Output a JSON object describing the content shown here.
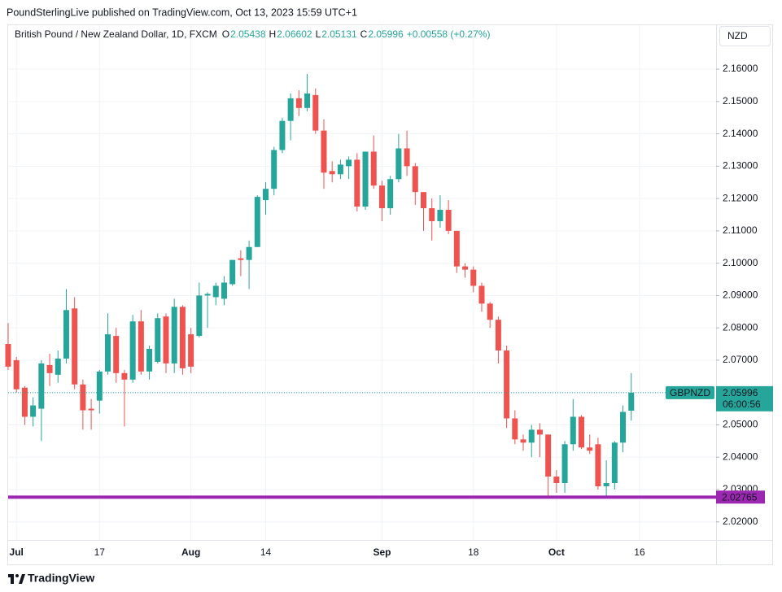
{
  "header": {
    "published": "PoundSterlingLive published on TradingView.com, Oct 13, 2023 15:59 UTC+1",
    "logo": "TradingView"
  },
  "chart_data": {
    "type": "candlestick",
    "title": "British Pound / New Zealand Dollar, 1D, FXCM",
    "ohlc_letters": [
      "O",
      "H",
      "L",
      "C"
    ],
    "change": "+0.00558 (+0.27%)",
    "currency": "NZD",
    "ticker": "GBPNZD",
    "countdown": "06:00:56",
    "up_color": "#26a69a",
    "down_color": "#ef5350",
    "hline": {
      "value": 2.02765,
      "label": "2.02765",
      "color": "#9c27b0"
    },
    "categories": [
      null,
      "Jul",
      null,
      null,
      null,
      null,
      null,
      null,
      null,
      null,
      null,
      "17",
      null,
      null,
      null,
      null,
      null,
      null,
      null,
      null,
      null,
      null,
      "Aug",
      null,
      null,
      null,
      null,
      null,
      null,
      null,
      null,
      "14",
      null,
      null,
      null,
      null,
      null,
      null,
      null,
      null,
      null,
      null,
      null,
      null,
      null,
      "Sep",
      null,
      null,
      null,
      null,
      null,
      null,
      null,
      null,
      null,
      null,
      "18",
      null,
      null,
      null,
      null,
      null,
      null,
      null,
      null,
      null,
      "Oct",
      null,
      null,
      null,
      null,
      null,
      null,
      null,
      null,
      null,
      "16"
    ],
    "open": [
      2.075,
      2.07,
      2.0615,
      2.0525,
      2.055,
      2.0685,
      2.0655,
      2.0705,
      2.086,
      2.0625,
      2.055,
      2.0575,
      2.0665,
      2.0775,
      2.066,
      2.064,
      2.082,
      2.0665,
      2.0695,
      2.0835,
      2.069,
      2.0865,
      2.078,
      2.0775,
      2.09,
      2.0895,
      2.089,
      2.0935,
      2.1015,
      2.101,
      2.105,
      2.1195,
      2.123,
      2.135,
      2.144,
      2.151,
      2.148,
      2.152,
      2.141,
      2.1285,
      2.1275,
      2.13,
      2.132,
      2.1175,
      2.1345,
      2.124,
      2.117,
      2.126,
      2.1355,
      2.13,
      2.122,
      2.117,
      2.113,
      2.1165,
      2.11,
      2.099,
      2.098,
      2.093,
      2.0875,
      2.0825,
      2.073,
      2.052,
      2.0455,
      2.0445,
      2.0485,
      2.047,
      2.034,
      2.032,
      2.044,
      2.0525,
      2.043,
      2.044,
      2.031,
      2.032,
      2.0445,
      2.05438,
      null
    ],
    "high": [
      2.0815,
      2.071,
      2.062,
      2.0585,
      2.07,
      2.072,
      2.073,
      2.092,
      2.0895,
      2.064,
      2.058,
      2.067,
      2.0845,
      2.08,
      2.067,
      2.084,
      2.0855,
      2.0745,
      2.0845,
      2.0845,
      2.089,
      2.087,
      2.08,
      2.094,
      2.091,
      2.094,
      2.096,
      2.101,
      2.104,
      2.107,
      2.121,
      2.125,
      2.136,
      2.145,
      2.1525,
      2.1535,
      2.1585,
      2.154,
      2.1445,
      2.1315,
      2.132,
      2.133,
      2.134,
      2.1345,
      2.1395,
      2.1255,
      2.127,
      2.14,
      2.141,
      2.131,
      2.122,
      2.12,
      2.121,
      2.1195,
      2.11,
      2.1,
      2.099,
      2.094,
      2.088,
      2.0835,
      2.0745,
      2.0545,
      2.047,
      2.05,
      2.0505,
      2.047,
      2.036,
      2.045,
      2.058,
      2.053,
      2.047,
      2.046,
      2.039,
      2.045,
      2.056,
      2.06602,
      null
    ],
    "low": [
      2.067,
      2.06,
      2.05,
      2.0495,
      2.045,
      2.062,
      2.063,
      2.069,
      2.061,
      2.0485,
      2.0485,
      2.0535,
      2.0655,
      2.063,
      2.0495,
      2.063,
      2.0655,
      2.064,
      2.069,
      2.066,
      2.066,
      2.0655,
      2.066,
      2.077,
      2.08,
      2.087,
      2.087,
      2.093,
      2.096,
      2.092,
      2.105,
      2.115,
      2.121,
      2.134,
      2.138,
      2.1455,
      2.147,
      2.14,
      2.123,
      2.125,
      2.126,
      2.126,
      2.116,
      2.1165,
      2.123,
      2.113,
      2.115,
      2.125,
      2.127,
      2.118,
      2.11,
      2.107,
      2.111,
      2.109,
      2.097,
      2.0955,
      2.091,
      2.085,
      2.08,
      2.069,
      2.049,
      2.044,
      2.042,
      2.04,
      2.04,
      2.0275,
      2.029,
      2.029,
      2.042,
      2.0425,
      2.041,
      2.03,
      2.028,
      2.03,
      2.0415,
      2.05131,
      null
    ],
    "close": [
      2.068,
      2.061,
      2.0525,
      2.056,
      2.069,
      2.066,
      2.0705,
      2.0855,
      2.0625,
      2.0545,
      2.0545,
      2.0665,
      2.078,
      2.066,
      2.064,
      2.082,
      2.0665,
      2.0735,
      2.083,
      2.069,
      2.0865,
      2.0675,
      2.068,
      2.09,
      2.0905,
      2.093,
      2.094,
      2.101,
      2.101,
      2.105,
      2.1205,
      2.123,
      2.135,
      2.144,
      2.151,
      2.148,
      2.1525,
      2.141,
      2.128,
      2.1275,
      2.1305,
      2.132,
      2.1175,
      2.1345,
      2.124,
      2.117,
      2.126,
      2.1355,
      2.13,
      2.122,
      2.117,
      2.113,
      2.1165,
      2.11,
      2.099,
      2.098,
      2.093,
      2.0875,
      2.0825,
      2.073,
      2.052,
      2.0455,
      2.0445,
      2.0485,
      2.047,
      2.034,
      2.032,
      2.044,
      2.0525,
      2.043,
      2.042,
      2.031,
      2.032,
      2.0445,
      2.054,
      2.05996,
      null
    ],
    "ylim": [
      2.0144,
      2.1736
    ],
    "yticks": [
      {
        "value": 2.02,
        "label": "2.02000"
      },
      {
        "value": 2.03,
        "label": "2.03000"
      },
      {
        "value": 2.04,
        "label": "2.04000"
      },
      {
        "value": 2.05,
        "label": "2.05000"
      },
      {
        "value": 2.06,
        "label": "2.06000"
      },
      {
        "value": 2.07,
        "label": "2.07000"
      },
      {
        "value": 2.08,
        "label": "2.08000"
      },
      {
        "value": 2.09,
        "label": "2.09000"
      },
      {
        "value": 2.1,
        "label": "2.10000"
      },
      {
        "value": 2.11,
        "label": "2.11000"
      },
      {
        "value": 2.12,
        "label": "2.12000"
      },
      {
        "value": 2.13,
        "label": "2.13000"
      },
      {
        "value": 2.14,
        "label": "2.14000"
      },
      {
        "value": 2.15,
        "label": "2.15000"
      },
      {
        "value": 2.16,
        "label": "2.16000"
      }
    ],
    "grid": true
  }
}
